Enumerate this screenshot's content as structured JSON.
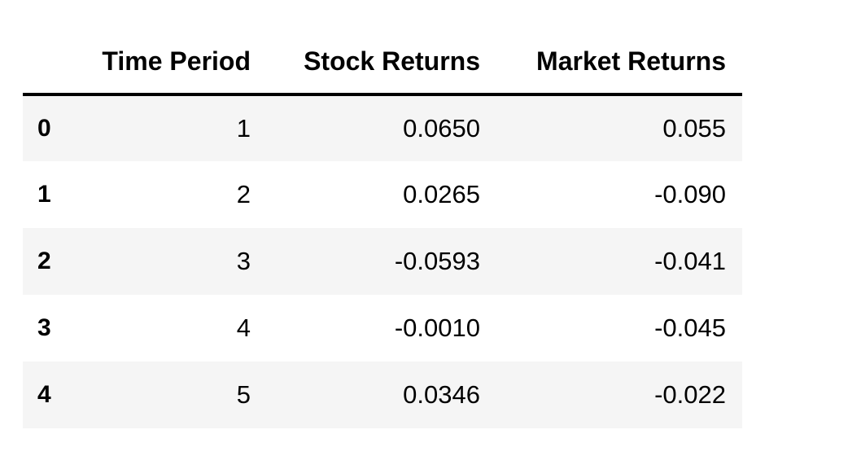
{
  "dataframe": {
    "index_header": "",
    "columns": [
      "Time Period",
      "Stock Returns",
      "Market Returns"
    ],
    "rows": [
      {
        "index": "0",
        "cells": [
          "1",
          "0.0650",
          "0.055"
        ]
      },
      {
        "index": "1",
        "cells": [
          "2",
          "0.0265",
          "-0.090"
        ]
      },
      {
        "index": "2",
        "cells": [
          "3",
          "-0.0593",
          "-0.041"
        ]
      },
      {
        "index": "3",
        "cells": [
          "4",
          "-0.0010",
          "-0.045"
        ]
      },
      {
        "index": "4",
        "cells": [
          "5",
          "0.0346",
          "-0.022"
        ]
      }
    ]
  }
}
